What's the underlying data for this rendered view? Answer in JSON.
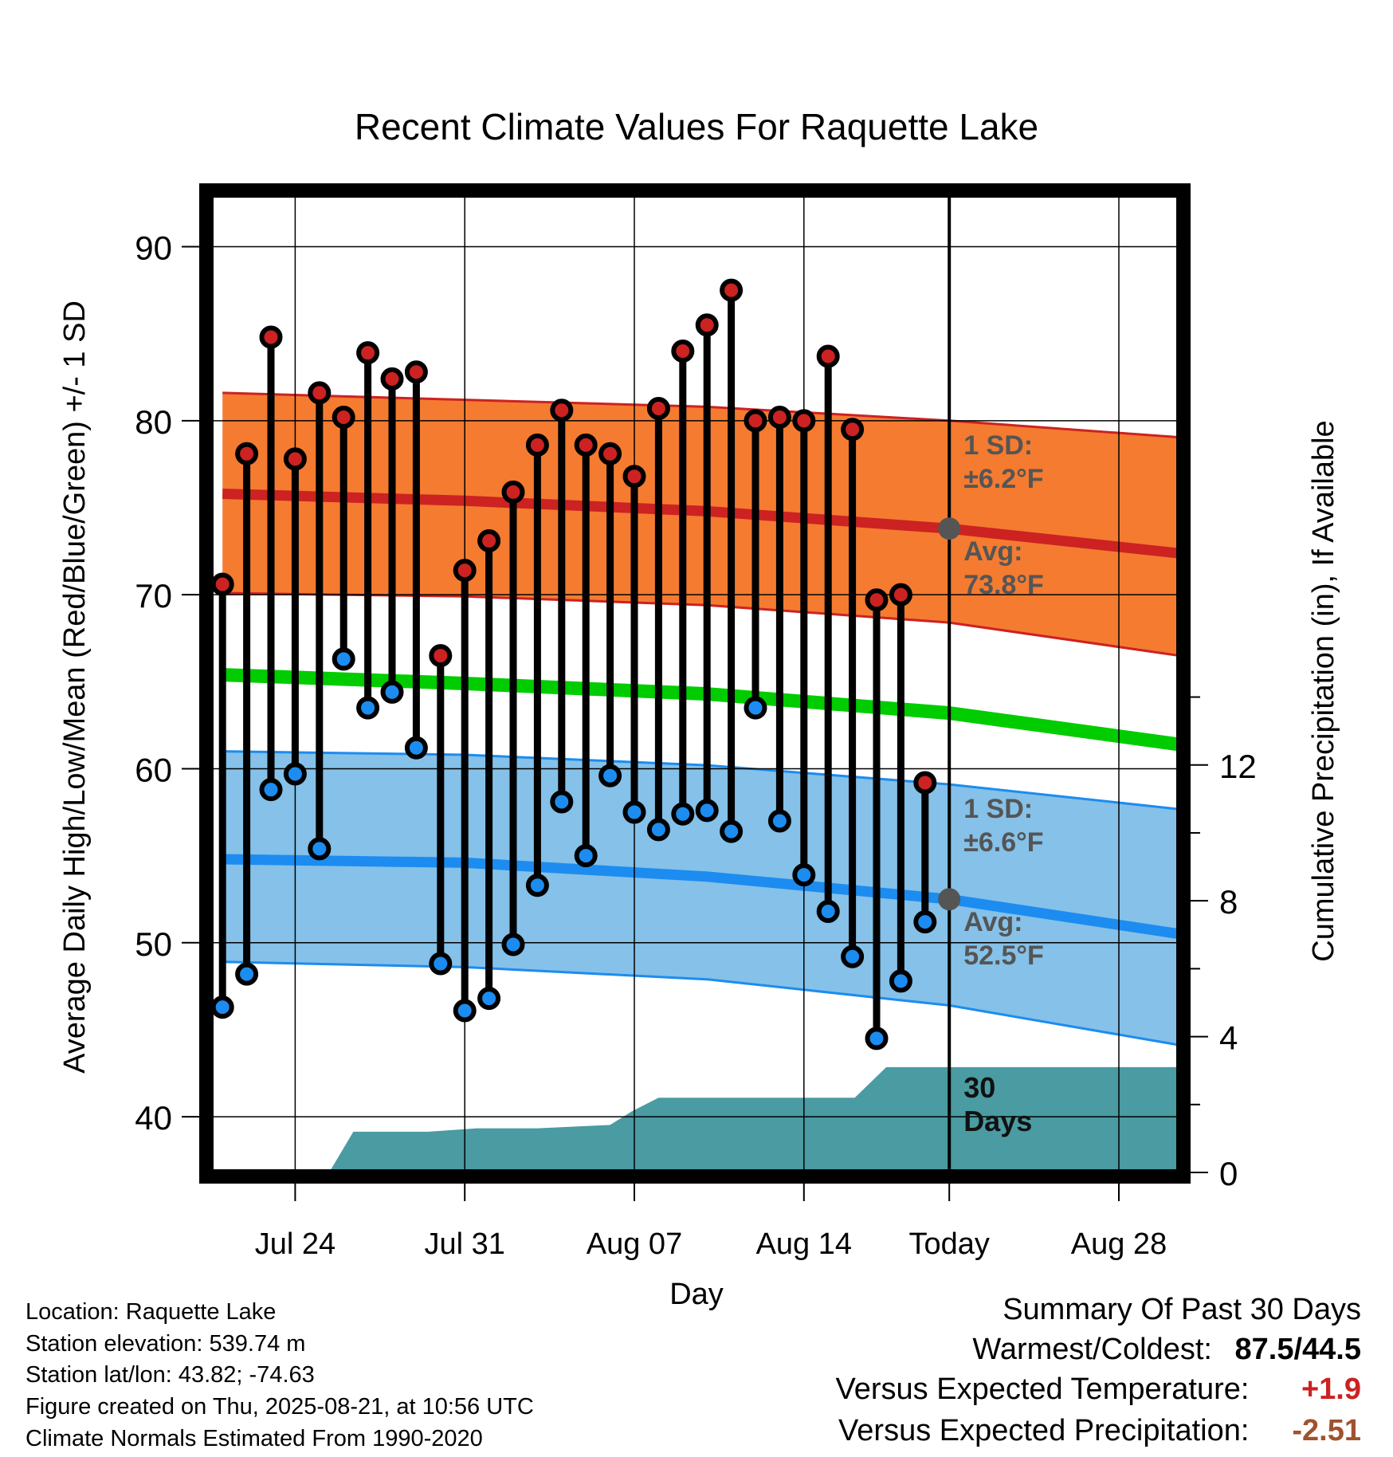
{
  "chart_data": {
    "type": "line",
    "title": "Recent Climate Values For Raquette Lake",
    "xlabel": "Day",
    "ylabel": "Average Daily High/Low/Mean (Red/Blue/Green) +/- 1 SD",
    "y2label": "Cumulative Precipitation (in), If Available",
    "x_ticks": [
      "Jul 24",
      "Jul 31",
      "Aug 07",
      "Aug 14",
      "Today",
      "Aug 28"
    ],
    "x_tick_days": [
      -27,
      -20,
      -13,
      -6,
      0,
      7
    ],
    "xlim_days": [
      -30.5,
      9.5
    ],
    "ylim": [
      36.8,
      93
    ],
    "y_ticks": [
      40,
      50,
      60,
      70,
      80,
      90
    ],
    "y2lim": [
      0,
      28.8
    ],
    "y2_ticks": [
      0,
      4,
      8,
      12
    ],
    "days": [
      -30,
      -29,
      -28,
      -27,
      -26,
      -25,
      -24,
      -23,
      -22,
      -21,
      -20,
      -19,
      -18,
      -17,
      -16,
      -15,
      -14,
      -13,
      -12,
      -11,
      -10,
      -9,
      -8,
      -7,
      -6,
      -5,
      -4,
      -3,
      -2,
      -1
    ],
    "series": [
      {
        "name": "High",
        "color": "#cc2222",
        "values": [
          70.6,
          78.1,
          84.8,
          77.8,
          81.6,
          80.2,
          83.9,
          82.4,
          82.8,
          66.5,
          71.4,
          73.1,
          75.9,
          78.6,
          80.6,
          78.6,
          78.1,
          76.8,
          80.7,
          84.0,
          85.5,
          87.5,
          80.0,
          80.2,
          80.0,
          83.7,
          79.5,
          69.7,
          70.0,
          59.2
        ]
      },
      {
        "name": "Low",
        "color": "#2288ee",
        "values": [
          46.3,
          48.2,
          58.8,
          59.7,
          55.4,
          66.3,
          63.5,
          64.4,
          61.2,
          48.8,
          46.1,
          46.8,
          49.9,
          53.3,
          58.1,
          55.0,
          59.6,
          57.5,
          56.5,
          57.4,
          57.6,
          56.4,
          63.5,
          57.0,
          53.9,
          51.8,
          49.2,
          44.5,
          47.8,
          51.2
        ]
      }
    ],
    "normals": {
      "days": [
        -30,
        -20,
        -10,
        0,
        10
      ],
      "high_mean": [
        75.8,
        75.4,
        74.8,
        73.8,
        72.3
      ],
      "high_upper": [
        81.6,
        81.2,
        80.8,
        80.0,
        79.0
      ],
      "high_lower": [
        70.1,
        69.9,
        69.4,
        68.4,
        66.4
      ],
      "low_mean": [
        54.8,
        54.6,
        53.8,
        52.5,
        50.4
      ],
      "low_upper": [
        61.0,
        60.8,
        60.2,
        59.1,
        57.6
      ],
      "low_lower": [
        48.9,
        48.6,
        47.9,
        46.4,
        44.0
      ],
      "mean": [
        65.4,
        64.9,
        64.3,
        63.2,
        61.3
      ]
    },
    "high_sd_label": "1 SD:",
    "high_sd_value": "±6.2°F",
    "high_avg_label": "Avg:",
    "high_avg_value": "73.8°F",
    "today_high": 73.8,
    "low_sd_label": "1 SD:",
    "low_sd_value": "±6.6°F",
    "low_avg_label": "Avg:",
    "low_avg_value": "52.5°F",
    "today_low": 52.5,
    "precip": {
      "days": [
        -30.5,
        -25.6,
        -24.6,
        -21.5,
        -19.5,
        -17,
        -14,
        -13.1,
        -12,
        -9,
        -3.9,
        -2.6,
        -1,
        9.5
      ],
      "values": [
        0,
        0,
        1.2,
        1.2,
        1.3,
        1.3,
        1.4,
        1.8,
        2.2,
        2.2,
        2.2,
        3.1,
        3.1,
        3.1
      ]
    },
    "window_label_line1": "30",
    "window_label_line2": "Days",
    "colors": {
      "high_band": "#f47b30",
      "high_line": "#cc2222",
      "low_band": "#85c1e8",
      "low_line": "#1c8cf0",
      "mean_line": "#00cc00",
      "precip": "#4a9ba2",
      "today_marker": "#555555",
      "label": "#555555"
    }
  },
  "info": {
    "location": "Location: Raquette Lake",
    "elevation": "Station elevation: 539.74 m",
    "latlon": "Station lat/lon: 43.82; -74.63",
    "created": "Figure created on Thu, 2025-08-21, at 10:56 UTC",
    "normals": "Climate Normals Estimated From 1990-2020"
  },
  "summary": {
    "title": "Summary Of Past 30 Days",
    "warm_cold_label": "Warmest/Coldest:",
    "warm_cold_value": "87.5/44.5",
    "temp_label": "Versus Expected Temperature:",
    "temp_value": "+1.9",
    "temp_color": "#cc2222",
    "precip_label": "Versus Expected Precipitation:",
    "precip_value": "-2.51",
    "precip_color": "#a0522d"
  }
}
